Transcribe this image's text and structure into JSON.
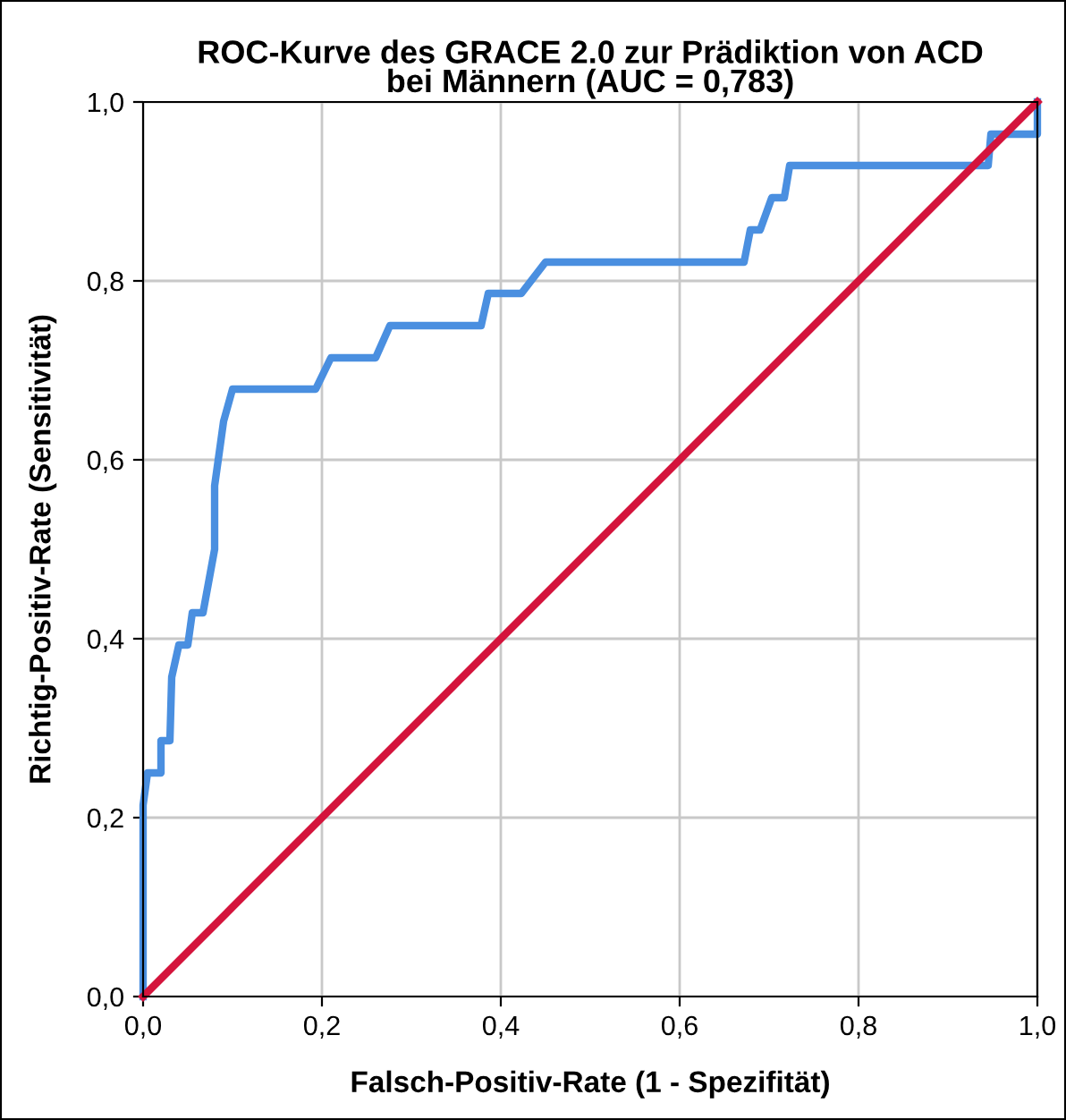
{
  "chart_data": {
    "type": "line",
    "title": "ROC-Kurve des GRACE 2.0 zur Prädiktion von ACD\nbei Männern (AUC = 0,783)",
    "xlabel": "Falsch-Positiv-Rate (1 - Spezifität)",
    "ylabel": "Richtig-Positiv-Rate (Sensitivität)",
    "series": [
      {
        "color": "#4a8fe0",
        "x": [
          0,
          0,
          0.005,
          0.02,
          0.02,
          0.03,
          0.032,
          0.04,
          0.05,
          0.055,
          0.067,
          0.08,
          0.08,
          0.085,
          0.09,
          0.1,
          0.193,
          0.21,
          0.26,
          0.276,
          0.378,
          0.386,
          0.423,
          0.45,
          0.672,
          0.679,
          0.69,
          0.703,
          0.717,
          0.723,
          0.945,
          0.948,
          1,
          1
        ],
        "values": [
          0,
          0.214,
          0.25,
          0.25,
          0.286,
          0.286,
          0.357,
          0.393,
          0.393,
          0.429,
          0.429,
          0.5,
          0.571,
          0.607,
          0.643,
          0.679,
          0.679,
          0.714,
          0.714,
          0.75,
          0.75,
          0.786,
          0.786,
          0.821,
          0.821,
          0.857,
          0.857,
          0.893,
          0.893,
          0.929,
          0.929,
          0.964,
          0.964,
          1
        ]
      },
      {
        "color": "#d4143c",
        "x": [
          0,
          1
        ],
        "values": [
          0,
          1
        ]
      }
    ],
    "xlim": [
      0,
      1
    ],
    "ylim": [
      0,
      1
    ],
    "xticks": [
      {
        "value": 0,
        "label": "0,0"
      },
      {
        "value": 0.2,
        "label": "0,2"
      },
      {
        "value": 0.4,
        "label": "0,4"
      },
      {
        "value": 0.6,
        "label": "0,6"
      },
      {
        "value": 0.8,
        "label": "0,8"
      },
      {
        "value": 1,
        "label": "1,0"
      }
    ],
    "yticks": [
      {
        "value": 0,
        "label": "0,0"
      },
      {
        "value": 0.2,
        "label": "0,2"
      },
      {
        "value": 0.4,
        "label": "0,4"
      },
      {
        "value": 0.6,
        "label": "0,6"
      },
      {
        "value": 0.8,
        "label": "0,8"
      },
      {
        "value": 1,
        "label": "1,0"
      }
    ],
    "grid": true,
    "line_style": "solid"
  }
}
